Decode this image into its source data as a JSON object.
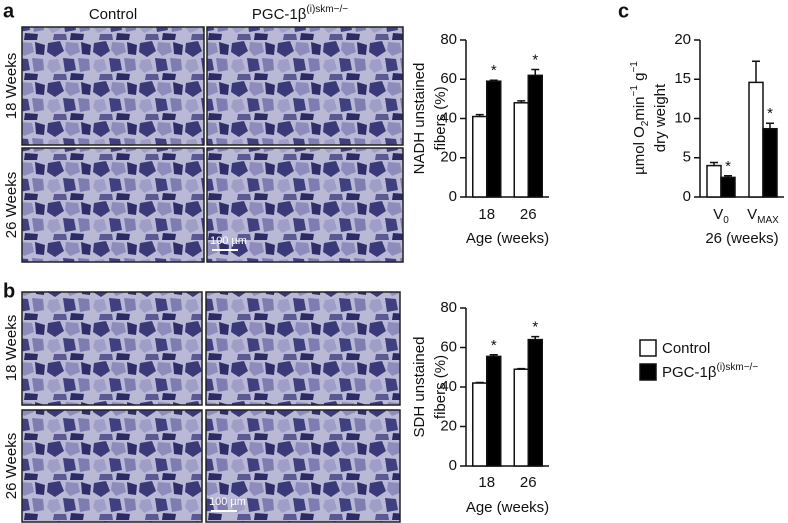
{
  "panels": {
    "a": "a",
    "b": "b",
    "c": "c"
  },
  "images": {
    "col_headers": [
      "Control",
      "PGC-1β"
    ],
    "col_header_superscript": "(i)skm−/−",
    "row_labels": [
      "18 Weeks",
      "26 Weeks"
    ],
    "scale_bar": "100 µm"
  },
  "chart_data": [
    {
      "type": "bar",
      "ylabel": [
        "NADH unstained",
        "fibers (%)"
      ],
      "xlabel": "Age (weeks)",
      "categories": [
        "18",
        "26"
      ],
      "ylim": [
        0,
        80
      ],
      "yticks": [
        0,
        20,
        40,
        60,
        80
      ],
      "series": [
        {
          "name": "Control",
          "color": "#ffffff",
          "values": [
            41,
            48
          ],
          "errors": [
            1,
            1
          ]
        },
        {
          "name": "PGC-1β",
          "name_superscript": "(i)skm−/−",
          "color": "#000000",
          "values": [
            59,
            62
          ],
          "errors": [
            0.5,
            3
          ],
          "annotations": [
            "*",
            "*"
          ]
        }
      ]
    },
    {
      "type": "bar",
      "ylabel": [
        "SDH unstained",
        "fibers (%)"
      ],
      "xlabel": "Age (weeks)",
      "categories": [
        "18",
        "26"
      ],
      "ylim": [
        0,
        80
      ],
      "yticks": [
        0,
        20,
        40,
        60,
        80
      ],
      "series": [
        {
          "name": "Control",
          "color": "#ffffff",
          "values": [
            42,
            49
          ],
          "errors": [
            0.3,
            0.3
          ]
        },
        {
          "name": "PGC-1β",
          "name_superscript": "(i)skm−/−",
          "color": "#000000",
          "values": [
            55.5,
            64
          ],
          "errors": [
            0.8,
            1.5
          ],
          "annotations": [
            "*",
            "*"
          ]
        }
      ]
    },
    {
      "type": "bar",
      "ylabel": [
        "µmol O",
        "2",
        "min",
        "−1",
        " g",
        "−1",
        "dry weight"
      ],
      "xlabel": "26 (weeks)",
      "categories": [
        "V",
        "V"
      ],
      "category_subscripts": [
        "0",
        "MAX"
      ],
      "ylim": [
        0,
        20
      ],
      "yticks": [
        0,
        5,
        10,
        15,
        20
      ],
      "series": [
        {
          "name": "Control",
          "color": "#ffffff",
          "values": [
            4,
            14.6
          ],
          "errors": [
            0.4,
            2.7
          ]
        },
        {
          "name": "PGC-1β",
          "name_superscript": "(i)skm−/−",
          "color": "#000000",
          "values": [
            2.5,
            8.7
          ],
          "errors": [
            0.2,
            0.7
          ],
          "annotations": [
            "*",
            "*"
          ]
        }
      ]
    }
  ]
}
